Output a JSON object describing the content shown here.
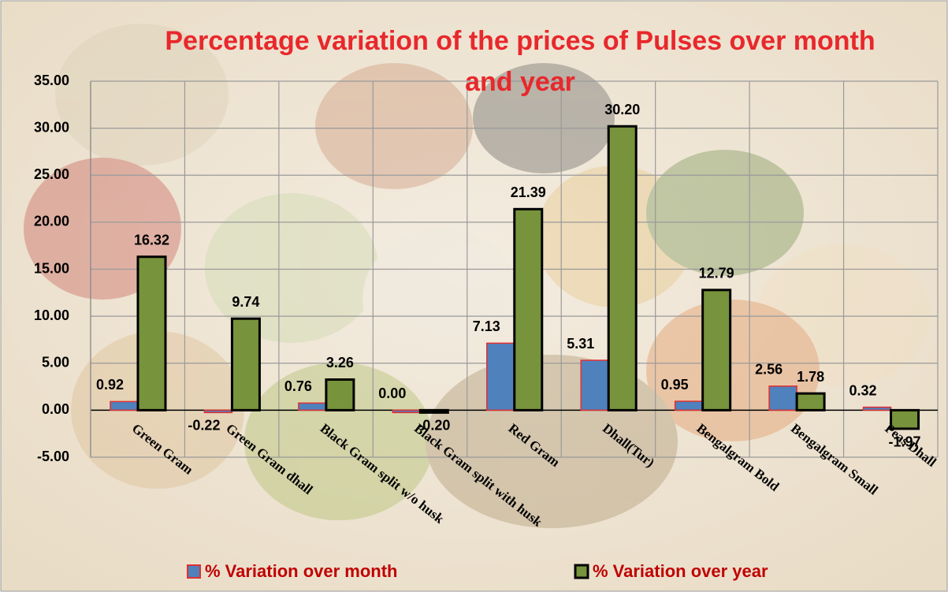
{
  "chart_data": {
    "type": "bar",
    "title": "Percentage variation of the prices of Pulses over month and year",
    "categories": [
      "Green Gram",
      "Green Gram dhall",
      "Black Gram split w/o husk",
      "Black Gram split with husk",
      "Red Gram",
      "Dhall(Tur)",
      "Bengalgram Bold",
      "Bengalgram Small",
      "Peas Dhall"
    ],
    "series": [
      {
        "name": "% Variation over month",
        "color": "#4f81bd",
        "edge": "#e03030",
        "values": [
          0.92,
          -0.22,
          0.76,
          0.0,
          7.13,
          5.31,
          0.95,
          2.56,
          0.32
        ],
        "value_labels": [
          "0.92",
          "-0.22",
          "0.76",
          "0.00",
          "7.13",
          "5.31",
          "0.95",
          "2.56",
          "0.32"
        ]
      },
      {
        "name": "% Variation over year",
        "color": "#77933c",
        "edge": "#000000",
        "values": [
          16.32,
          9.74,
          3.26,
          -0.2,
          21.39,
          30.2,
          12.79,
          1.78,
          -1.97
        ],
        "value_labels": [
          "16.32",
          "9.74",
          "3.26",
          "-0.20",
          "21.39",
          "30.20",
          "12.79",
          "1.78",
          "-1.97"
        ]
      }
    ],
    "ylim": [
      -5,
      35
    ],
    "yticks": [
      {
        "value": -5,
        "label": "-5.00"
      },
      {
        "value": 0,
        "label": "0.00"
      },
      {
        "value": 5,
        "label": "5.00"
      },
      {
        "value": 10,
        "label": "10.00"
      },
      {
        "value": 15,
        "label": "15.00"
      },
      {
        "value": 20,
        "label": "20.00"
      },
      {
        "value": 25,
        "label": "25.00"
      },
      {
        "value": 30,
        "label": "30.00"
      },
      {
        "value": 35,
        "label": "35.00"
      }
    ],
    "grid": true,
    "legend": "bottom"
  }
}
